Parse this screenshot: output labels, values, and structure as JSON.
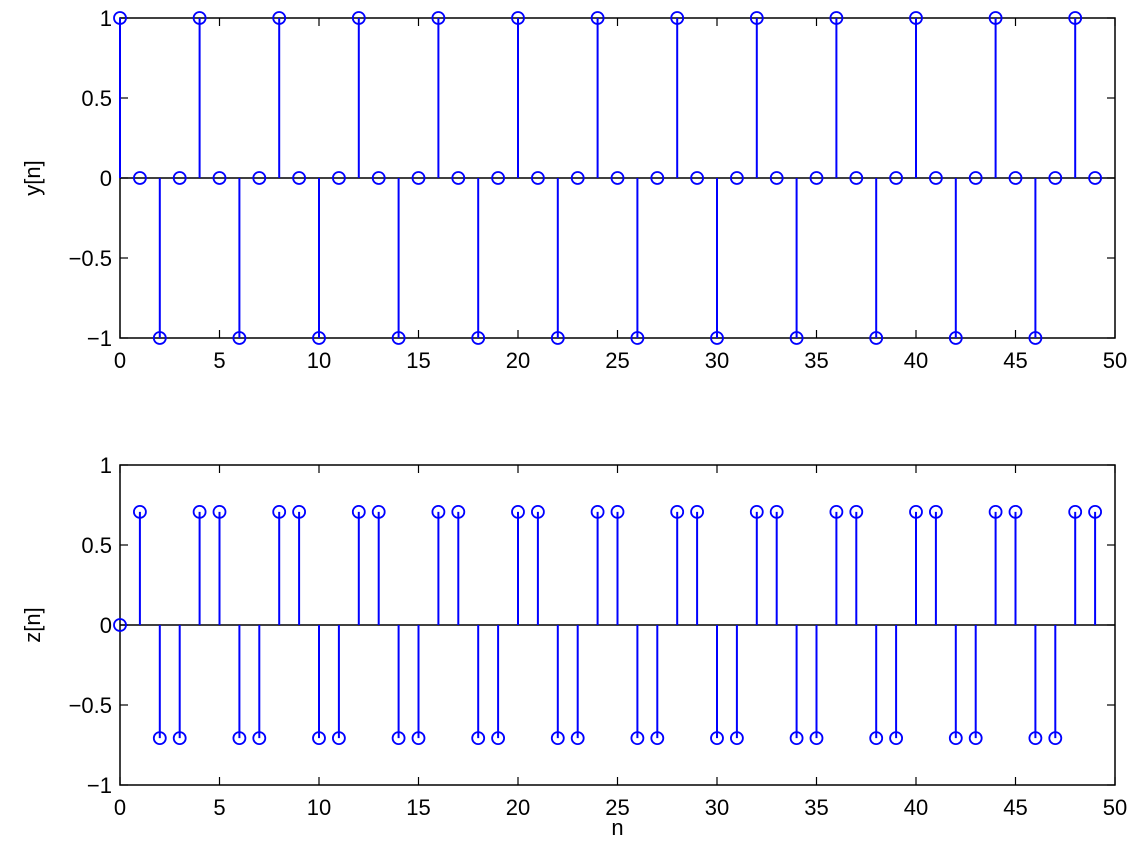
{
  "chart_data": [
    {
      "type": "stem",
      "ylabel": "y[n]",
      "xlabel": "",
      "xlim": [
        0,
        50
      ],
      "ylim": [
        -1,
        1
      ],
      "xticks": [
        0,
        5,
        10,
        15,
        20,
        25,
        30,
        35,
        40,
        45,
        50
      ],
      "yticks": [
        -1,
        -0.5,
        0,
        0.5,
        1
      ],
      "ytick_labels": [
        "−1",
        "−0.5",
        "0",
        "0.5",
        "1"
      ],
      "color": "#0000ff",
      "x": [
        0,
        1,
        2,
        3,
        4,
        5,
        6,
        7,
        8,
        9,
        10,
        11,
        12,
        13,
        14,
        15,
        16,
        17,
        18,
        19,
        20,
        21,
        22,
        23,
        24,
        25,
        26,
        27,
        28,
        29,
        30,
        31,
        32,
        33,
        34,
        35,
        36,
        37,
        38,
        39,
        40,
        41,
        42,
        43,
        44,
        45,
        46,
        47,
        48,
        49
      ],
      "y": [
        1,
        0,
        -1,
        0,
        1,
        0,
        -1,
        0,
        1,
        0,
        -1,
        0,
        1,
        0,
        -1,
        0,
        1,
        0,
        -1,
        0,
        1,
        0,
        -1,
        0,
        1,
        0,
        -1,
        0,
        1,
        0,
        -1,
        0,
        1,
        0,
        -1,
        0,
        1,
        0,
        -1,
        0,
        1,
        0,
        -1,
        0,
        1,
        0,
        -1,
        0,
        1,
        0
      ]
    },
    {
      "type": "stem",
      "ylabel": "z[n]",
      "xlabel": "n",
      "xlim": [
        0,
        50
      ],
      "ylim": [
        -1,
        1
      ],
      "xticks": [
        0,
        5,
        10,
        15,
        20,
        25,
        30,
        35,
        40,
        45,
        50
      ],
      "yticks": [
        -1,
        -0.5,
        0,
        0.5,
        1
      ],
      "ytick_labels": [
        "−1",
        "−0.5",
        "0",
        "0.5",
        "1"
      ],
      "color": "#0000ff",
      "x": [
        0,
        1,
        2,
        3,
        4,
        5,
        6,
        7,
        8,
        9,
        10,
        11,
        12,
        13,
        14,
        15,
        16,
        17,
        18,
        19,
        20,
        21,
        22,
        23,
        24,
        25,
        26,
        27,
        28,
        29,
        30,
        31,
        32,
        33,
        34,
        35,
        36,
        37,
        38,
        39,
        40,
        41,
        42,
        43,
        44,
        45,
        46,
        47,
        48,
        49
      ],
      "y": [
        0,
        0.707,
        -0.707,
        -0.707,
        0.707,
        0.707,
        -0.707,
        -0.707,
        0.707,
        0.707,
        -0.707,
        -0.707,
        0.707,
        0.707,
        -0.707,
        -0.707,
        0.707,
        0.707,
        -0.707,
        -0.707,
        0.707,
        0.707,
        -0.707,
        -0.707,
        0.707,
        0.707,
        -0.707,
        -0.707,
        0.707,
        0.707,
        -0.707,
        -0.707,
        0.707,
        0.707,
        -0.707,
        -0.707,
        0.707,
        0.707,
        -0.707,
        -0.707,
        0.707,
        0.707,
        -0.707,
        -0.707,
        0.707,
        0.707,
        -0.707,
        -0.707,
        0.707,
        0.707
      ]
    }
  ]
}
